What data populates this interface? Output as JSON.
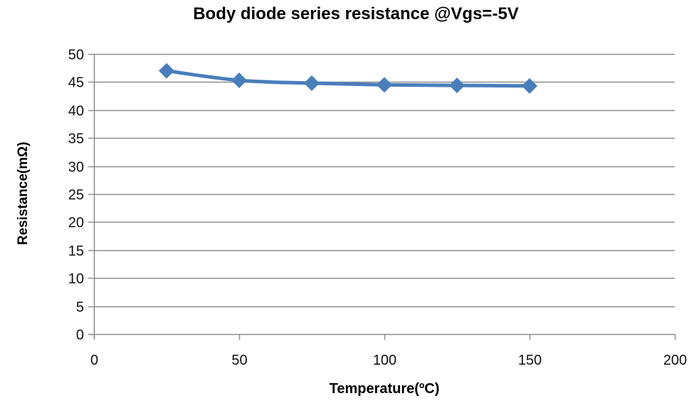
{
  "chart_data": {
    "type": "line",
    "title": "Body diode series resistance @Vgs=-5V",
    "xlabel": "Temperature(ºC)",
    "ylabel": "Resistance(mΩ)",
    "xlim": [
      0,
      200
    ],
    "ylim": [
      0,
      50
    ],
    "xticks": [
      0,
      50,
      100,
      150,
      200
    ],
    "yticks": [
      0,
      5,
      10,
      15,
      20,
      25,
      30,
      35,
      40,
      45,
      50
    ],
    "grid": {
      "horizontal": true,
      "vertical": false
    },
    "legend": null,
    "series": [
      {
        "name": "Resistance",
        "color": "#4a7ebb",
        "marker": "diamond",
        "smooth": true,
        "x": [
          25,
          50,
          75,
          100,
          125,
          150
        ],
        "values": [
          47.0,
          45.3,
          44.8,
          44.5,
          44.4,
          44.3
        ]
      }
    ]
  },
  "colors": {
    "series": "#4a7ebb",
    "grid": "#8c8c8c",
    "axis": "#8c8c8c"
  }
}
